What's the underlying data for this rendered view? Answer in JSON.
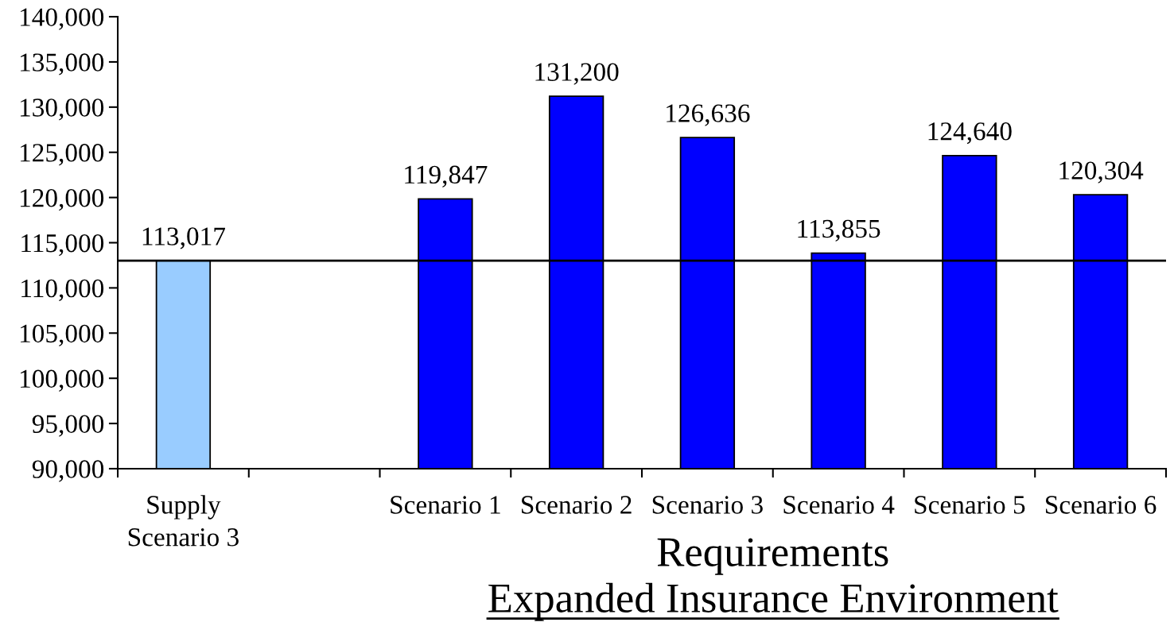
{
  "chart_data": {
    "type": "bar",
    "categories": [
      "Supply\nScenario 3",
      null,
      "Scenario 1",
      "Scenario 2",
      "Scenario 3",
      "Scenario 4",
      "Scenario 5",
      "Scenario 6"
    ],
    "values": [
      113017,
      null,
      119847,
      131200,
      126636,
      113855,
      124640,
      120304
    ],
    "colors": [
      "#99ccff",
      null,
      "#0000ff",
      "#0000ff",
      "#0000ff",
      "#0000ff",
      "#0000ff",
      "#0000ff"
    ],
    "value_labels": [
      "113,017",
      null,
      "119,847",
      "131,200",
      "126,636",
      "113,855",
      "124,640",
      "120,304"
    ],
    "ylim": [
      90000,
      140000
    ],
    "yticks": [
      {
        "value": 90000,
        "label": "90,000"
      },
      {
        "value": 95000,
        "label": "95,000"
      },
      {
        "value": 100000,
        "label": "100,000"
      },
      {
        "value": 105000,
        "label": "105,000"
      },
      {
        "value": 110000,
        "label": "110,000"
      },
      {
        "value": 115000,
        "label": "115,000"
      },
      {
        "value": 120000,
        "label": "120,000"
      },
      {
        "value": 125000,
        "label": "125,000"
      },
      {
        "value": 130000,
        "label": "130,000"
      },
      {
        "value": 135000,
        "label": "135,000"
      },
      {
        "value": 140000,
        "label": "140,000"
      }
    ],
    "ref_lines": [
      {
        "axis": "y",
        "value": 113017,
        "color": "#000000"
      }
    ],
    "xlabel": "Requirements",
    "annotations": [
      "Expanded Insurance Environment"
    ]
  }
}
